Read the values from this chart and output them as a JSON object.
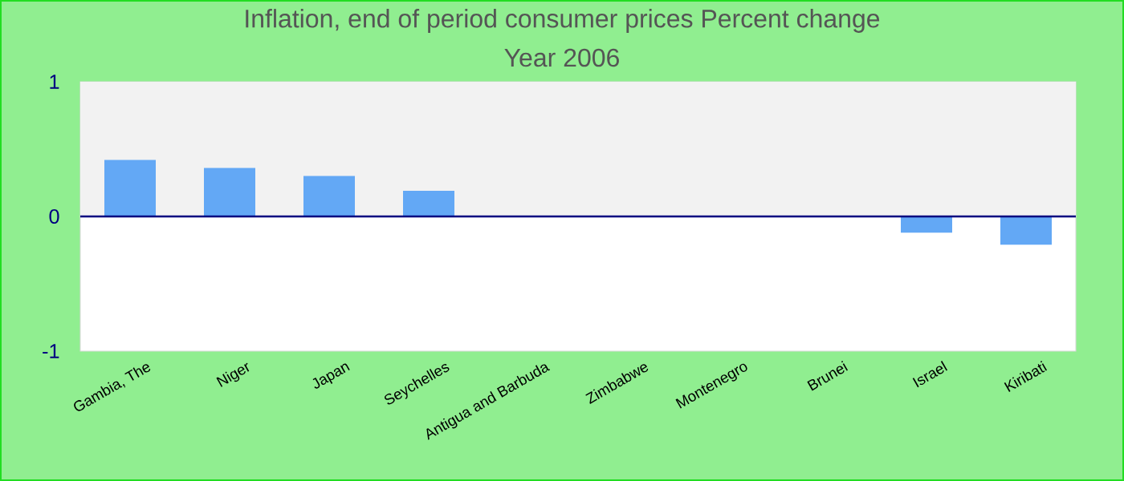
{
  "chart_data": {
    "type": "bar",
    "title": "Inflation, end of period consumer prices  Percent change",
    "subtitle": "Year 2006",
    "categories": [
      "Gambia, The",
      "Niger",
      "Japan",
      "Seychelles",
      "Antigua and Barbuda",
      "Zimbabwe",
      "Montenegro",
      "Brunei",
      "Israel",
      "Kiribati"
    ],
    "values": [
      0.42,
      0.36,
      0.3,
      0.19,
      0,
      0,
      0,
      0,
      -0.12,
      -0.21
    ],
    "color": "#63a8f5",
    "ylim": [
      -1,
      1
    ],
    "yticks": [
      -1,
      0,
      1
    ],
    "bands": [
      {
        "axis": "y",
        "from": 0,
        "to": 1,
        "color": "#f2f2f2"
      }
    ],
    "ref_lines": [
      {
        "axis": "y",
        "value": 0,
        "color": "#000080"
      }
    ],
    "grid": false
  }
}
